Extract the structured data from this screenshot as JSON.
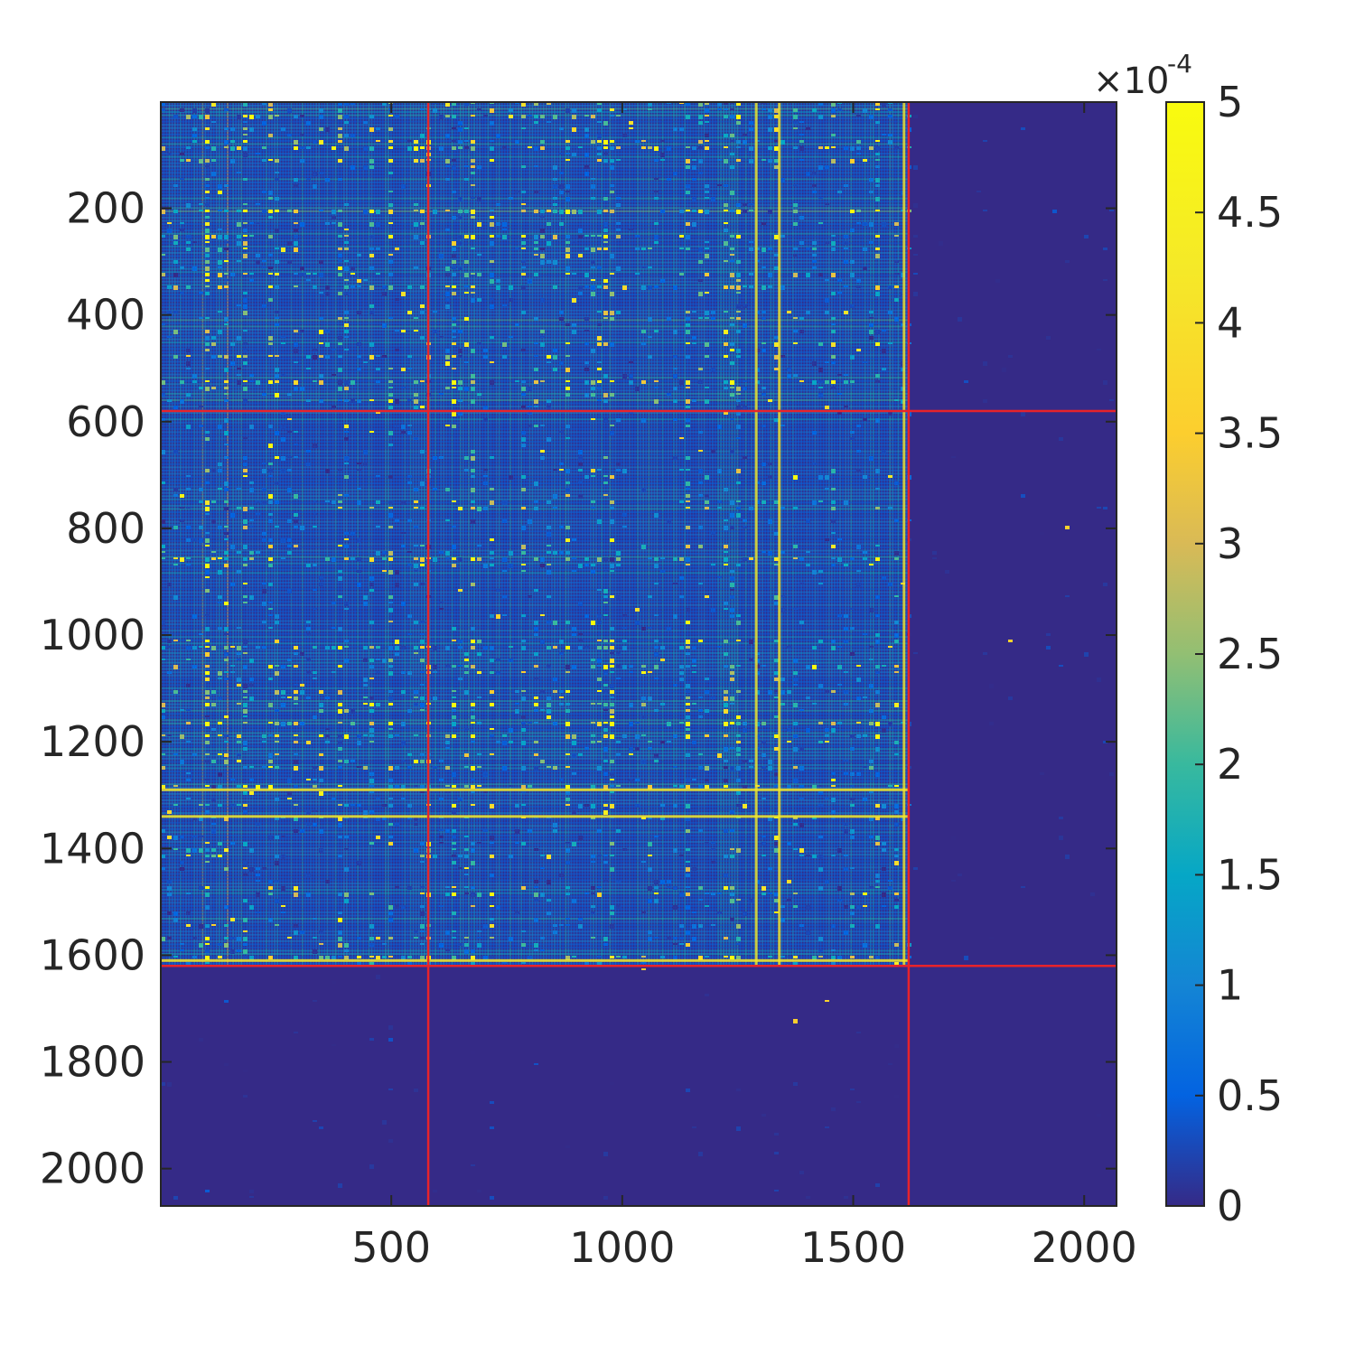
{
  "chart_data": {
    "type": "heatmap",
    "title": "",
    "xlabel": "",
    "ylabel": "",
    "xlim": [
      1,
      2070
    ],
    "ylim": [
      1,
      2070
    ],
    "y_direction": "top-to-bottom",
    "x_ticks": [
      500,
      1000,
      1500,
      2000
    ],
    "y_ticks": [
      200,
      400,
      600,
      800,
      1000,
      1200,
      1400,
      1600,
      1800,
      2000
    ],
    "x_tick_labels": [
      "500",
      "1000",
      "1500",
      "2000"
    ],
    "y_tick_labels": [
      "200",
      "400",
      "600",
      "800",
      "1000",
      "1200",
      "1400",
      "1600",
      "1800",
      "2000"
    ],
    "colorbar": {
      "range": [
        0,
        5
      ],
      "ticks": [
        0,
        0.5,
        1,
        1.5,
        2,
        2.5,
        3,
        3.5,
        4,
        4.5,
        5
      ],
      "tick_labels": [
        "0",
        "0.5",
        "1",
        "1.5",
        "2",
        "2.5",
        "3",
        "3.5",
        "4",
        "4.5",
        "5"
      ],
      "exponent_base": "×10",
      "exponent_power": "-4",
      "colormap": "parula"
    },
    "block_boundaries": [
      580,
      1620
    ],
    "block_boundary_color": "#e8232b",
    "bright_rows": [
      1290,
      1340,
      1610
    ],
    "bright_columns": [
      1290,
      1340,
      1610
    ],
    "structure": "Dense speckled intensity in the upper-left block (indices 1–1620), mostly low values (dark blue) outside it, with a few bright horizontal/vertical lines."
  },
  "colors": {
    "background": "#352a87",
    "axis": "#262626",
    "boundary": "#e8232b"
  }
}
